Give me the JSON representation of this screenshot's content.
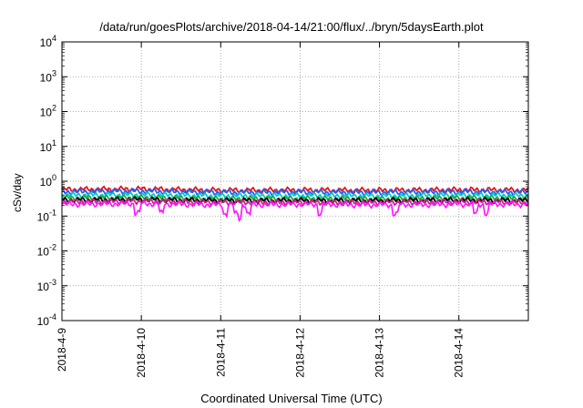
{
  "chart_data": {
    "type": "line",
    "title": "/data/run/goesPlots/archive/2018-04-14/21:00/flux/../bryn/5daysEarth.plot",
    "xlabel": "Coordinated Universal Time (UTC)",
    "ylabel": "cSv/day",
    "yscale": "log",
    "ylim": [
      0.0001,
      10000
    ],
    "xlim": [
      "2018-04-09",
      "2018-04-14T21:00"
    ],
    "grid": true,
    "y_ticks": [
      {
        "value": 0.0001,
        "base": "10",
        "exp": "-4"
      },
      {
        "value": 0.001,
        "base": "10",
        "exp": "-3"
      },
      {
        "value": 0.01,
        "base": "10",
        "exp": "-2"
      },
      {
        "value": 0.1,
        "base": "10",
        "exp": "-1"
      },
      {
        "value": 1,
        "base": "10",
        "exp": "0"
      },
      {
        "value": 10,
        "base": "10",
        "exp": "1"
      },
      {
        "value": 100,
        "base": "10",
        "exp": "2"
      },
      {
        "value": 1000,
        "base": "10",
        "exp": "3"
      },
      {
        "value": 10000,
        "base": "10",
        "exp": "4"
      }
    ],
    "x_ticks": [
      "2018-4-9",
      "2018-4-10",
      "2018-4-11",
      "2018-4-12",
      "2018-4-13",
      "2018-4-14"
    ],
    "x_days": [
      0,
      1,
      2,
      3,
      4,
      5,
      5.875
    ],
    "series": [
      {
        "color": "#e8141c",
        "values": [
          0.58,
          0.6,
          0.55,
          0.56,
          0.55,
          0.57,
          0.56
        ]
      },
      {
        "color": "#1f5fff",
        "values": [
          0.5,
          0.52,
          0.48,
          0.49,
          0.48,
          0.5,
          0.49
        ]
      },
      {
        "color": "#00c8c8",
        "values": [
          0.4,
          0.41,
          0.38,
          0.39,
          0.38,
          0.4,
          0.39
        ]
      },
      {
        "color": "#1fa83a",
        "values": [
          0.33,
          0.34,
          0.31,
          0.32,
          0.31,
          0.33,
          0.32
        ]
      },
      {
        "color": "#000000",
        "values": [
          0.29,
          0.3,
          0.28,
          0.28,
          0.28,
          0.29,
          0.28
        ]
      },
      {
        "color": "#cc2288",
        "values": [
          0.26,
          0.27,
          0.25,
          0.25,
          0.25,
          0.26,
          0.25
        ]
      },
      {
        "color": "#ff10ff",
        "values": [
          0.22,
          0.23,
          0.21,
          0.22,
          0.21,
          0.22,
          0.22
        ]
      }
    ]
  }
}
